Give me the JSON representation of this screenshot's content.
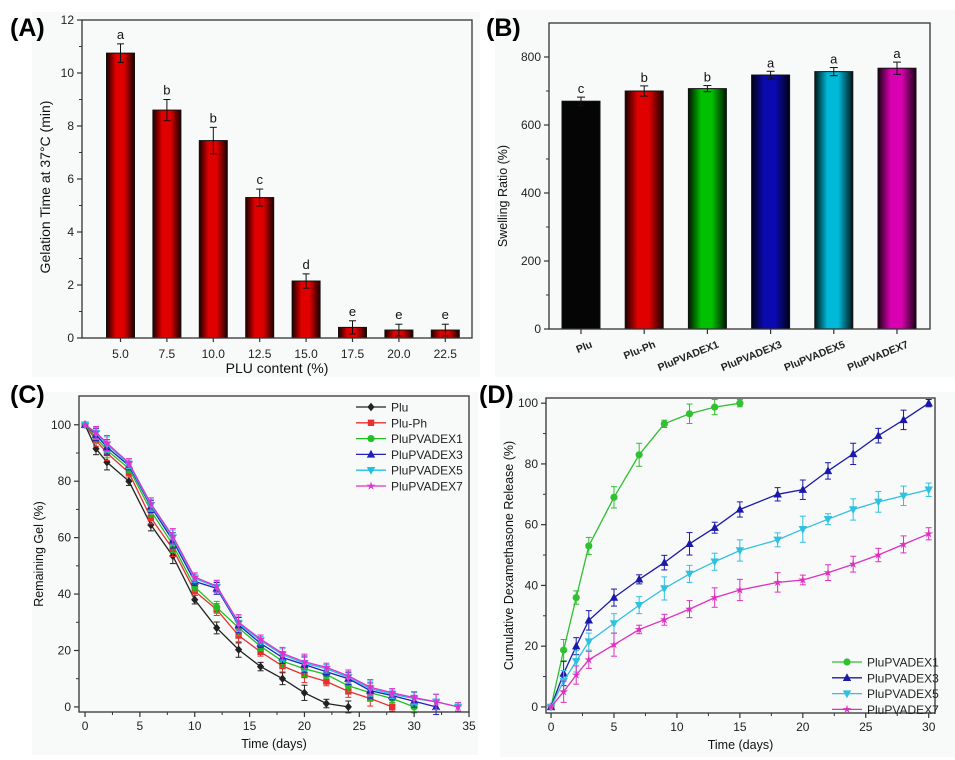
{
  "figure": {
    "panels": [
      {
        "letter": "(A)"
      },
      {
        "letter": "(B)"
      },
      {
        "letter": "(C)"
      },
      {
        "letter": "(D)"
      }
    ]
  },
  "chart_data": [
    {
      "id": "A",
      "type": "bar",
      "title": "",
      "xlabel": "PLU content (%)",
      "ylabel": "Gelation Time at 37°C (min)",
      "categories": [
        "5.0",
        "7.5",
        "10.0",
        "12.5",
        "15.0",
        "17.5",
        "20.0",
        "22.5"
      ],
      "values": [
        10.75,
        8.6,
        7.45,
        5.3,
        2.15,
        0.4,
        0.3,
        0.3
      ],
      "errors": [
        0.35,
        0.4,
        0.5,
        0.32,
        0.27,
        0.25,
        0.22,
        0.22
      ],
      "significance": [
        "a",
        "b",
        "b",
        "c",
        "d",
        "e",
        "e",
        "e"
      ],
      "ylim": [
        0,
        12
      ],
      "yticks": [
        0,
        2,
        4,
        6,
        8,
        10,
        12
      ],
      "bar_color": "#e00000",
      "grid": false
    },
    {
      "id": "B",
      "type": "bar",
      "title": "",
      "xlabel": "",
      "ylabel": "Swelling Ratio (%)",
      "categories": [
        "Plu",
        "Plu-Ph",
        "PluPVADEX1",
        "PluPVADEX3",
        "PluPVADEX5",
        "PluPVADEX7"
      ],
      "values": [
        670,
        700,
        707,
        747,
        757,
        767
      ],
      "errors": [
        12,
        15,
        9,
        11,
        12,
        18
      ],
      "significance": [
        "c",
        "b",
        "b",
        "a",
        "a",
        "a"
      ],
      "colors": [
        "#0a0a0a",
        "#e00000",
        "#00c000",
        "#0a0ab0",
        "#00b8d8",
        "#d800b0"
      ],
      "ylim": [
        0,
        900
      ],
      "yticks": [
        0,
        200,
        400,
        600,
        800
      ],
      "grid": false
    },
    {
      "id": "C",
      "type": "line",
      "title": "",
      "xlabel": "Time (days)",
      "ylabel": "Remaining Gel (%)",
      "xlim": [
        -1,
        35
      ],
      "ylim": [
        -3,
        110
      ],
      "xticks": [
        0,
        5,
        10,
        15,
        20,
        25,
        30,
        35
      ],
      "yticks": [
        0,
        20,
        40,
        60,
        80,
        100
      ],
      "legend": "top-right",
      "grid": false,
      "series": [
        {
          "name": "Plu",
          "color": "#222222",
          "marker": "diamond",
          "x": [
            0,
            1,
            2,
            4,
            6,
            8,
            10,
            12,
            14,
            16,
            18,
            20,
            22,
            24
          ],
          "y": [
            100,
            91.5,
            86.7,
            80,
            64.5,
            53.5,
            38,
            28,
            20.3,
            14.3,
            10,
            5,
            1.2,
            0
          ]
        },
        {
          "name": "Plu-Ph",
          "color": "#e83030",
          "marker": "square",
          "x": [
            0,
            1,
            2,
            4,
            6,
            8,
            10,
            12,
            14,
            16,
            18,
            20,
            22,
            24,
            26,
            28
          ],
          "y": [
            100,
            94.5,
            90,
            83,
            67,
            56,
            41,
            34.5,
            25.3,
            19.5,
            14.5,
            11.3,
            9,
            5.5,
            3,
            0
          ]
        },
        {
          "name": "PluPVADEX1",
          "color": "#20c020",
          "marker": "circle",
          "x": [
            0,
            1,
            2,
            4,
            6,
            8,
            10,
            12,
            14,
            16,
            18,
            20,
            22,
            24,
            26,
            28,
            30
          ],
          "y": [
            100,
            95.5,
            91,
            84.5,
            69.5,
            57.5,
            42.5,
            35.3,
            28,
            21.5,
            16.2,
            13.5,
            11.5,
            7.5,
            5,
            3,
            0
          ]
        },
        {
          "name": "PluPVADEX3",
          "color": "#2020c0",
          "marker": "triangle-up",
          "x": [
            0,
            1,
            2,
            4,
            6,
            8,
            10,
            12,
            14,
            16,
            18,
            20,
            22,
            24,
            26,
            28,
            30,
            32
          ],
          "y": [
            100,
            96.5,
            92,
            85.5,
            71,
            59,
            44.5,
            42,
            29,
            22.5,
            17.5,
            15,
            12.5,
            10,
            5.8,
            4,
            2,
            0
          ]
        },
        {
          "name": "PluPVADEX5",
          "color": "#20c0e0",
          "marker": "triangle-down",
          "x": [
            0,
            1,
            2,
            4,
            6,
            8,
            10,
            12,
            14,
            16,
            18,
            20,
            22,
            24,
            26,
            28,
            30,
            32,
            34
          ],
          "y": [
            100,
            97,
            93,
            86,
            71.5,
            60,
            45.5,
            42.5,
            29.5,
            23.5,
            18.5,
            15.5,
            13.5,
            10.5,
            6.5,
            4.5,
            3,
            1.8,
            0
          ]
        },
        {
          "name": "PluPVADEX7",
          "color": "#e030d0",
          "marker": "star",
          "x": [
            0,
            1,
            2,
            4,
            6,
            8,
            10,
            12,
            14,
            16,
            18,
            20,
            22,
            24,
            26,
            28,
            30,
            32,
            34
          ],
          "y": [
            100,
            97.3,
            93.5,
            86.5,
            72,
            60.5,
            46,
            42.8,
            30,
            24,
            19,
            16,
            14,
            11,
            7,
            5,
            3.3,
            1.8,
            0
          ]
        }
      ]
    },
    {
      "id": "D",
      "type": "line",
      "title": "",
      "xlabel": "Time (days)",
      "ylabel": "Cumulative Dexamethasone Release (%)",
      "xlim": [
        -1,
        30.5
      ],
      "ylim": [
        -1.5,
        102
      ],
      "xticks": [
        0,
        5,
        10,
        15,
        20,
        25,
        30
      ],
      "yticks": [
        0,
        20,
        40,
        60,
        80,
        100
      ],
      "legend": "bottom-right",
      "grid": false,
      "series": [
        {
          "name": "PluPVADEX1",
          "color": "#30c030",
          "marker": "circle",
          "x": [
            0,
            1,
            2,
            3,
            5,
            7,
            9,
            11,
            13,
            15
          ],
          "y": [
            0,
            18.7,
            36,
            53,
            69,
            83,
            93.2,
            96.5,
            98.7,
            100
          ],
          "err": [
            0,
            3.5,
            2.2,
            2.8,
            3.5,
            3.8,
            1.2,
            3.2,
            2.5,
            1.2
          ]
        },
        {
          "name": "PluPVADEX3",
          "color": "#1a1aa8",
          "marker": "triangle-up",
          "x": [
            0,
            1,
            2,
            3,
            5,
            7,
            9,
            11,
            13,
            15,
            18,
            20,
            22,
            24,
            26,
            28,
            30
          ],
          "y": [
            0,
            11,
            20,
            28.5,
            36,
            42,
            47.5,
            53.7,
            59,
            65,
            70,
            71.5,
            77.7,
            83.3,
            89.3,
            94.5,
            100
          ],
          "err": [
            0,
            4,
            2.8,
            3.2,
            2.8,
            1.5,
            2.4,
            3.7,
            1.8,
            2.5,
            2.2,
            3.2,
            2.7,
            3.5,
            2.4,
            3.2,
            1.2
          ]
        },
        {
          "name": "PluPVADEX5",
          "color": "#30c0e0",
          "marker": "triangle-down",
          "x": [
            0,
            1,
            2,
            3,
            5,
            7,
            9,
            11,
            13,
            15,
            18,
            20,
            22,
            24,
            26,
            28,
            30
          ],
          "y": [
            0,
            8.5,
            15,
            21.5,
            27.5,
            33.5,
            39,
            43.8,
            47.8,
            51.5,
            55,
            58.5,
            61.8,
            65,
            67.5,
            69.5,
            71.5
          ],
          "err": [
            0,
            3.5,
            3.5,
            2.8,
            3.2,
            2.8,
            3.8,
            2.8,
            2.8,
            3.5,
            2.3,
            4.3,
            1.8,
            3.5,
            3.4,
            3.2,
            2.2
          ]
        },
        {
          "name": "PluPVADEX7",
          "color": "#e030c0",
          "marker": "star",
          "x": [
            0,
            1,
            2,
            3,
            5,
            7,
            9,
            11,
            13,
            15,
            18,
            20,
            22,
            24,
            26,
            28,
            30
          ],
          "y": [
            0,
            5,
            10.5,
            15.5,
            20.5,
            25.5,
            28.7,
            32.2,
            36,
            38.5,
            41,
            41.8,
            44.2,
            47,
            50,
            53.5,
            57
          ],
          "err": [
            0,
            3.5,
            3,
            2.8,
            3.8,
            1.4,
            1.8,
            2.8,
            3.2,
            3.5,
            3.2,
            1.6,
            2.6,
            2.6,
            2.2,
            2.8,
            2
          ]
        }
      ]
    }
  ]
}
